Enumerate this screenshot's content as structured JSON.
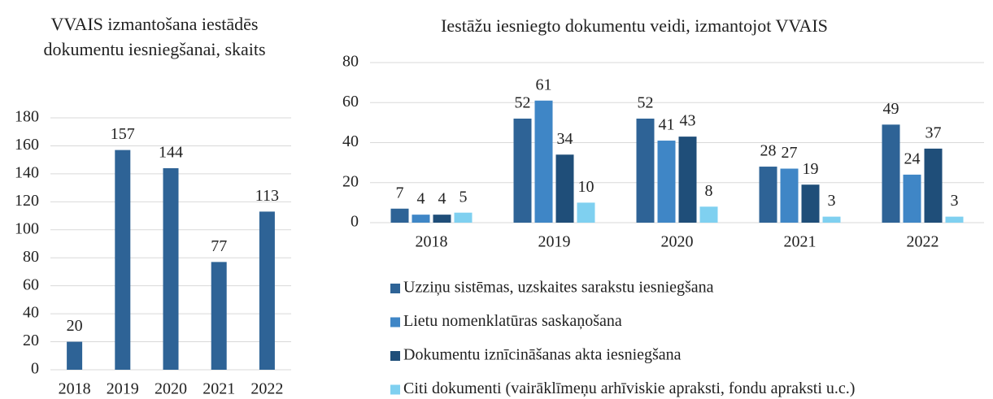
{
  "chart_data": [
    {
      "type": "bar",
      "title": "VVAIS izmantošana iestādēs dokumentu iesniegšanai, skaits",
      "categories": [
        "2018",
        "2019",
        "2020",
        "2021",
        "2022"
      ],
      "values": [
        20,
        157,
        144,
        77,
        113
      ],
      "color": "#2e6396",
      "ylim": [
        0,
        180
      ],
      "yticks": [
        0,
        20,
        40,
        60,
        80,
        100,
        120,
        140,
        160,
        180
      ],
      "grid": true
    },
    {
      "type": "grouped_bar",
      "title": "Iestāžu iesniegto dokumentu veidi, izmantojot VVAIS",
      "categories": [
        "2018",
        "2019",
        "2020",
        "2021",
        "2022"
      ],
      "series": [
        {
          "name": "Uzziņu sistēmas, uzskaites sarakstu iesniegšana",
          "color": "#2e6396",
          "values": [
            7,
            52,
            52,
            28,
            49
          ]
        },
        {
          "name": "Lietu nomenklatūras saskaņošana",
          "color": "#3f86c6",
          "values": [
            4,
            61,
            41,
            27,
            24
          ]
        },
        {
          "name": "Dokumentu iznīcināšanas akta iesniegšana",
          "color": "#1f4e79",
          "values": [
            4,
            34,
            43,
            19,
            37
          ]
        },
        {
          "name": "Citi dokumenti (vairāklīmeņu arhīviskie apraksti, fondu apraksti u.c.)",
          "color": "#7fd0f0",
          "values": [
            5,
            10,
            8,
            3,
            3
          ]
        }
      ],
      "ylim": [
        0,
        80
      ],
      "yticks": [
        0,
        20,
        40,
        60,
        80
      ],
      "grid": true,
      "legend": "bottom"
    }
  ]
}
